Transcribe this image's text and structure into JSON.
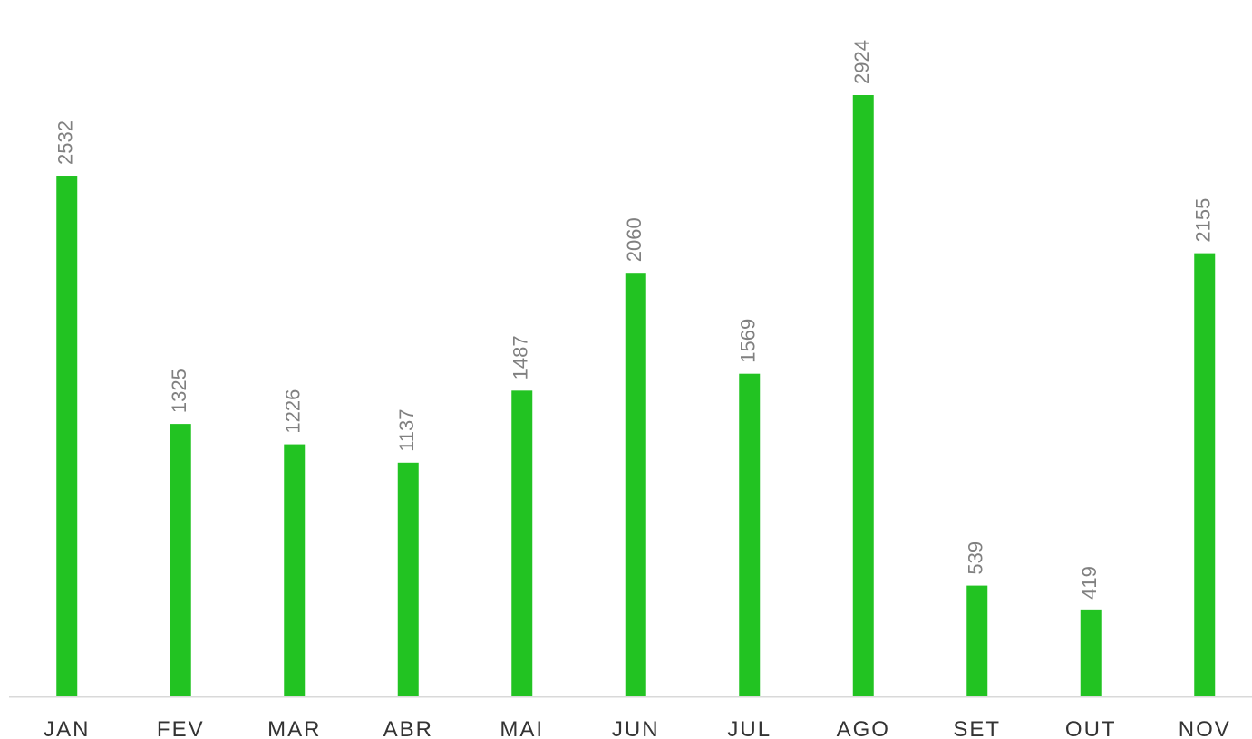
{
  "chart_data": {
    "type": "bar",
    "categories": [
      "JAN",
      "FEV",
      "MAR",
      "ABR",
      "MAI",
      "JUN",
      "JUL",
      "AGO",
      "SET",
      "OUT",
      "NOV"
    ],
    "values": [
      2532,
      1325,
      1226,
      1137,
      1487,
      2060,
      1569,
      2924,
      539,
      419,
      2155
    ],
    "color": "#22c322"
  }
}
